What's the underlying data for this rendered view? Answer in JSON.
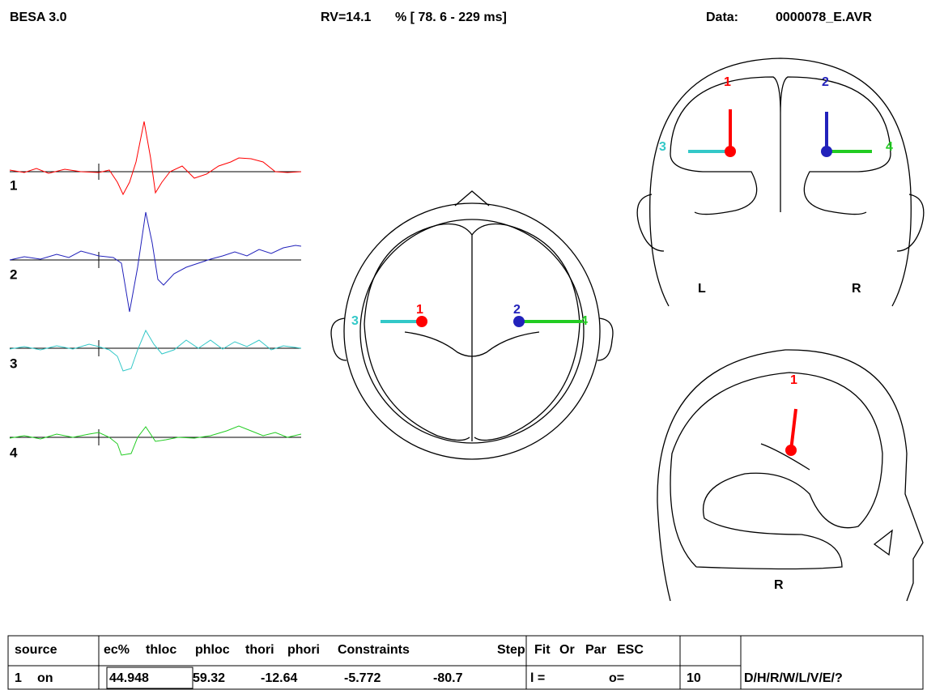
{
  "header": {
    "app": "BESA 3.0",
    "rv": "RV=14.1",
    "range": "% [ 78. 6 - 229 ms]",
    "data_label": "Data:",
    "data_file": "0000078_E.AVR"
  },
  "traces": {
    "labels": [
      "1",
      "2",
      "3",
      "4"
    ]
  },
  "axial": {
    "labels": [
      "3",
      "1",
      "2",
      "4"
    ]
  },
  "coronal": {
    "labels": [
      "1",
      "2",
      "3",
      "4"
    ],
    "left": "L",
    "right": "R"
  },
  "sagittal": {
    "labels": [
      "1"
    ],
    "side": "R"
  },
  "table": {
    "header": [
      "source",
      "ec%",
      "thloc",
      "phloc",
      "thori",
      "phori",
      "Constraints",
      "Step",
      "Fit",
      "Or",
      "Par",
      "ESC"
    ],
    "row": [
      "1",
      "on",
      "44.948",
      "59.32",
      "-12.64",
      "-5.772",
      "-80.7",
      "l =",
      "o=",
      "10",
      "D/H/R/W/L/V/E/?"
    ]
  }
}
